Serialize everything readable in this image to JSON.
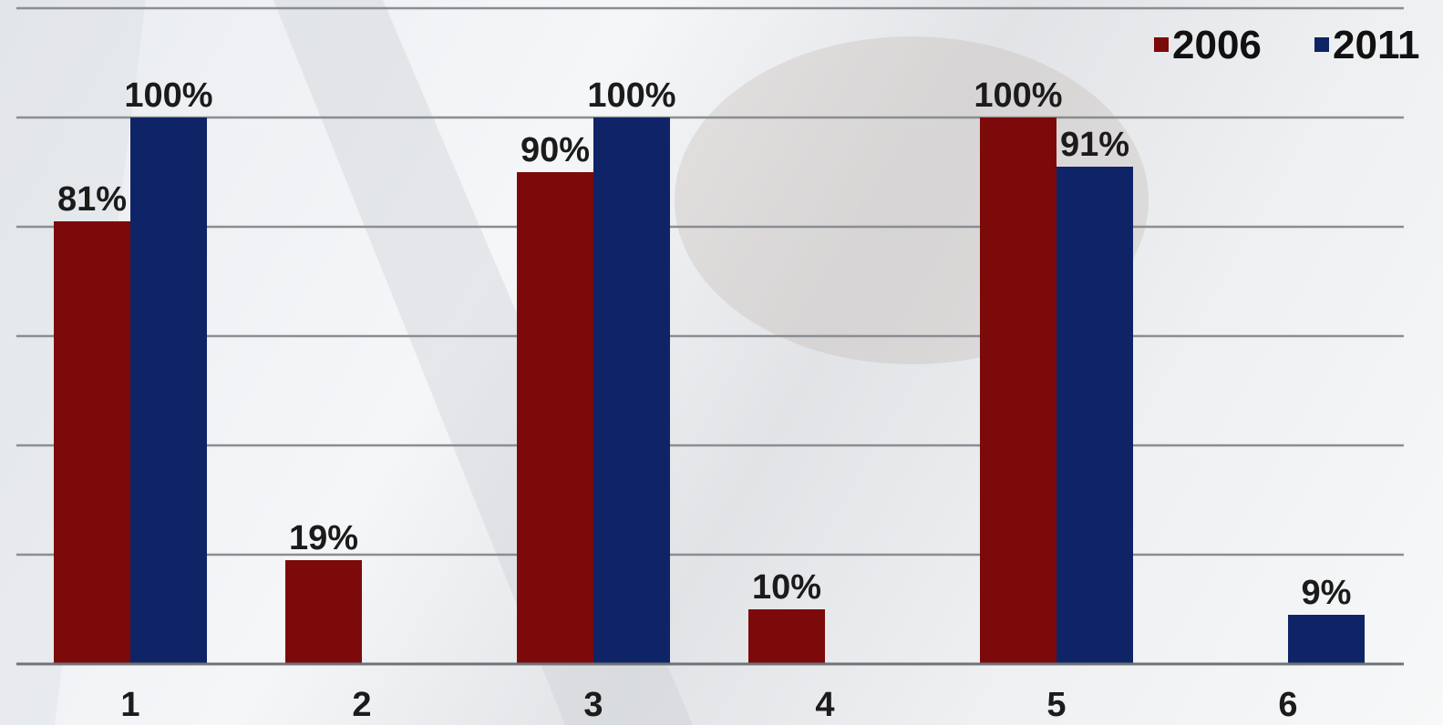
{
  "chart_data": {
    "type": "bar",
    "categories": [
      "1",
      "2",
      "3",
      "4",
      "5",
      "6"
    ],
    "series": [
      {
        "name": "2006",
        "values": [
          81,
          19,
          90,
          10,
          100,
          null
        ],
        "labels": [
          "81%",
          "19%",
          "90%",
          "10%",
          "100%",
          ""
        ]
      },
      {
        "name": "2011",
        "values": [
          100,
          null,
          100,
          null,
          91,
          9
        ],
        "labels": [
          "100%",
          "",
          "100%",
          "",
          "91%",
          "9%"
        ]
      }
    ],
    "ylim": [
      0,
      100
    ],
    "y_gridlines": [
      0,
      20,
      40,
      60,
      80,
      100,
      120
    ],
    "grid": true,
    "legend_position": "top-right",
    "colors": {
      "2006": "#7d0a0a",
      "2011": "#0f2467"
    }
  }
}
